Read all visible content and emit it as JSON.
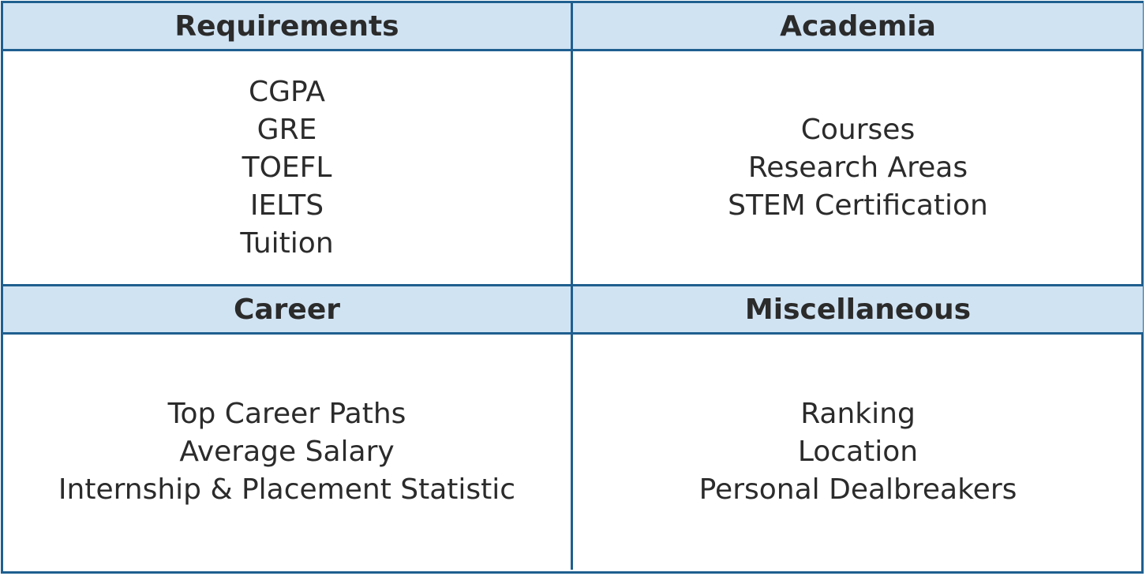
{
  "colors": {
    "header_bg": "#d0e3f3",
    "border": "#1f5f8f",
    "text": "#2b2b2b"
  },
  "quadrants": {
    "requirements": {
      "title": "Requirements",
      "items": [
        "CGPA",
        "GRE",
        "TOEFL",
        "IELTS",
        "Tuition"
      ]
    },
    "academia": {
      "title": "Academia",
      "items": [
        "Courses",
        "Research Areas",
        "STEM Certification"
      ]
    },
    "career": {
      "title": "Career",
      "items": [
        "Top Career Paths",
        "Average Salary",
        "Internship & Placement Statistic"
      ]
    },
    "miscellaneous": {
      "title": "Miscellaneous",
      "items": [
        "Ranking",
        "Location",
        "Personal Dealbreakers"
      ]
    }
  }
}
